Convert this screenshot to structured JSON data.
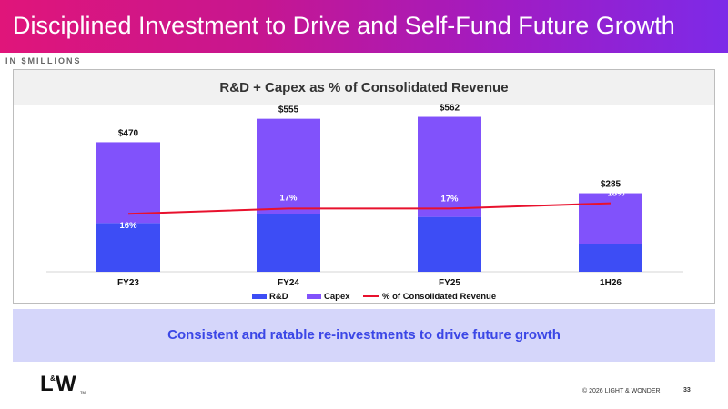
{
  "header": {
    "title": "Disciplined Investment to Drive and Self-Fund Future Growth"
  },
  "units_label": "IN $MILLIONS",
  "chart_data": {
    "type": "bar",
    "stacked": true,
    "title": "R&D + Capex as % of Consolidated Revenue",
    "categories": [
      "FY23",
      "FY24",
      "FY25",
      "1H26"
    ],
    "series": [
      {
        "name": "R&D",
        "kind": "bar",
        "values": [
          177,
          208,
          199,
          99
        ],
        "color": "#3d4df5"
      },
      {
        "name": "Capex",
        "kind": "bar",
        "values": [
          293,
          347,
          363,
          186
        ],
        "color": "#8152fb"
      },
      {
        "name": "% of Consolidated Revenue",
        "kind": "line",
        "values": [
          16,
          17,
          17,
          18
        ],
        "color": "#e8112d"
      }
    ],
    "totals": [
      "$470",
      "$555",
      "$562",
      "$285"
    ],
    "percent_labels": [
      "16%",
      "17%",
      "17%",
      "18%"
    ],
    "ylim": [
      0,
      600
    ],
    "legend_position": "bottom",
    "grid": false
  },
  "callout": {
    "text": "Consistent and ratable re-investments to drive future growth"
  },
  "logo": {
    "l": "L",
    "amp": "&",
    "w": "W",
    "tm": "TM"
  },
  "footer": {
    "copyright": "© 2026 LIGHT & WONDER",
    "page_number": "33"
  }
}
